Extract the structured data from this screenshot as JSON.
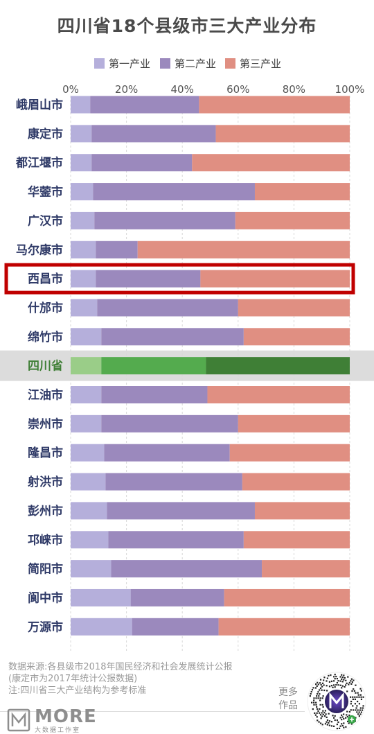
{
  "title": "四川省18个县级市三大产业分布",
  "legend": [
    {
      "label": "第一产业",
      "color": "#b5afdb"
    },
    {
      "label": "第二产业",
      "color": "#9b89bd"
    },
    {
      "label": "第三产业",
      "color": "#e08f82"
    }
  ],
  "highlight_colors": [
    "#9acd88",
    "#54ab4e",
    "#3f7f36"
  ],
  "highlight_band_color": "#dcdcdc",
  "highlight_frame_color": "#c00000",
  "chart_data": {
    "type": "bar",
    "orientation": "horizontal",
    "stacked": true,
    "unit": "%",
    "xlim": [
      0,
      100
    ],
    "xticks": [
      "0%",
      "20%",
      "40%",
      "60%",
      "80%",
      "100%"
    ],
    "grid": true,
    "legend_position": "top-center",
    "categories": [
      "峨眉山市",
      "康定市",
      "都江堰市",
      "华蓥市",
      "广汉市",
      "马尔康市",
      "西昌市",
      "什邡市",
      "绵竹市",
      "四川省",
      "江油市",
      "崇州市",
      "隆昌市",
      "射洪市",
      "彭州市",
      "邛崃市",
      "简阳市",
      "阆中市",
      "万源市"
    ],
    "highlighted_category": "四川省",
    "framed_category": "西昌市",
    "series": [
      {
        "name": "第一产业",
        "values": [
          7,
          7.5,
          7.5,
          8,
          8.5,
          9,
          9,
          9.5,
          11,
          11,
          11,
          11,
          12,
          12.5,
          13,
          13.5,
          14.5,
          21.5,
          22
        ]
      },
      {
        "name": "第二产业",
        "values": [
          39,
          44.5,
          36,
          58,
          50.5,
          15,
          37.5,
          50.5,
          51,
          37.5,
          38,
          49,
          45,
          49,
          53,
          48.5,
          54,
          33.5,
          31
        ]
      },
      {
        "name": "第三产业",
        "values": [
          54,
          48,
          56.5,
          34,
          41,
          76,
          53.5,
          40,
          38,
          51.5,
          51,
          40,
          43,
          38.5,
          34,
          38,
          31.5,
          45,
          47
        ]
      }
    ]
  },
  "source_lines": [
    "数据来源:各县级市2018年国民经济和社会发展统计公报",
    "(康定市为2017年统计公报数据)",
    "注:四川省三大产业结构为参考标准"
  ],
  "logo": {
    "word": "MORE",
    "sub": "大数据工作室"
  },
  "more_works": [
    "更多",
    "作品"
  ]
}
